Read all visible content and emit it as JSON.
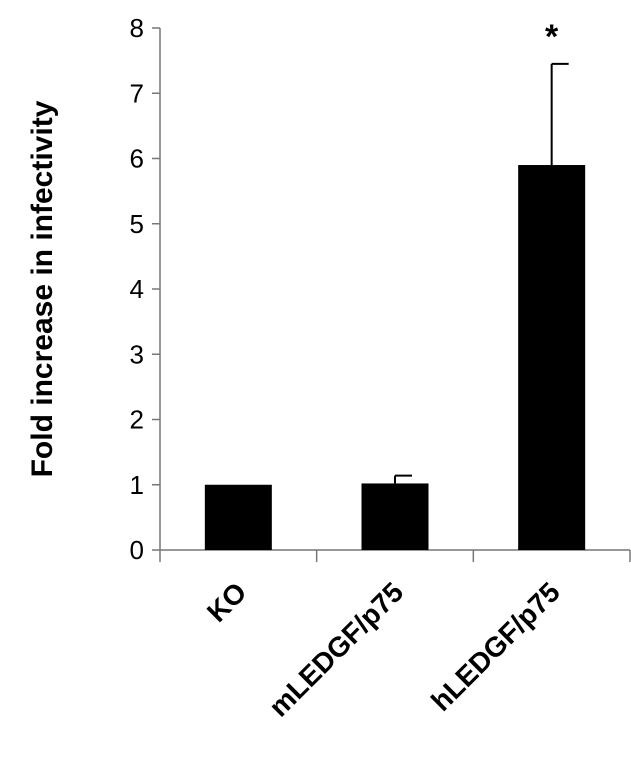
{
  "chart_data": {
    "type": "bar",
    "title": "",
    "xlabel": "",
    "ylabel": "Fold increase in infectivity",
    "categories": [
      "KO",
      "mLEDGF/p75",
      "hLEDGF/p75"
    ],
    "values": [
      1.0,
      1.02,
      5.9
    ],
    "error_upper": [
      0,
      0.12,
      1.55
    ],
    "annotations": [
      "",
      "",
      "*"
    ],
    "ylim": [
      0,
      8
    ],
    "yticks": [
      "0",
      "1",
      "2",
      "3",
      "4",
      "5",
      "6",
      "7",
      "8"
    ],
    "grid": false,
    "legend": "none",
    "bar_color": "#000000"
  }
}
